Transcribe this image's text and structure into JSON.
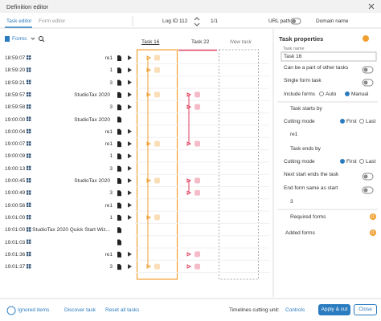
{
  "header": {
    "title": "Definition editor"
  },
  "tabs": [
    "Task editor",
    "Form editor"
  ],
  "toolbar": {
    "log_id": "Log ID 112",
    "page": "1/1",
    "url_path": "URL path",
    "domain_name": "Domain name"
  },
  "list": {
    "filter": "Forms",
    "rows": [
      {
        "time": "18:59:07",
        "form": "re1"
      },
      {
        "time": "18:59:20",
        "form": "1"
      },
      {
        "time": "18:59:21",
        "form": "3"
      },
      {
        "time": "18:59:57",
        "app": "StudioTax 2020",
        "form": "re1"
      },
      {
        "time": "18:59:58",
        "form": "3"
      },
      {
        "time": "19:00:00",
        "app": "StudioTax 2020"
      },
      {
        "time": "19:00:04",
        "form": "re1"
      },
      {
        "time": "19:00:07",
        "form": "re1"
      },
      {
        "time": "19:00:09",
        "form": "1"
      },
      {
        "time": "19:00:13",
        "form": "3"
      },
      {
        "time": "19:00:45",
        "app": "StudioTax 2020",
        "form": "re1"
      },
      {
        "time": "19:00:49",
        "form": "3"
      },
      {
        "time": "19:00:56",
        "form": "re1"
      },
      {
        "time": "19:01:00",
        "form": "1"
      },
      {
        "time": "19:01:00",
        "app": "StudioTax 2020 Quick Start Wiz..."
      },
      {
        "time": "19:01:03"
      },
      {
        "time": "19:01:36",
        "form": "re1"
      },
      {
        "time": "19:01:37",
        "form": "3"
      }
    ]
  },
  "tasks": [
    "Task 16",
    "Task 22",
    "New task"
  ],
  "properties": {
    "title": "Task properties",
    "name_label": "Task name",
    "name_value": "Task 16",
    "part_of_other": "Can be a part of other tasks",
    "single_form": "Single form task",
    "include_forms": "Include forms",
    "auto": "Auto",
    "manual": "Manual",
    "starts_by": "Task starts by",
    "cutting_mode": "Cutting mode",
    "first": "First",
    "last": "Last",
    "start_form": "re1",
    "ends_by": "Task ends by",
    "next_start": "Next start ends the task",
    "end_same": "End form same as start",
    "end_form": "3",
    "required_forms": "Required forms",
    "required_count": 0,
    "added_forms": "Added forms",
    "added_count": 0
  },
  "footer": {
    "ignored": "Ignored items",
    "discover": "Discover task",
    "reset": "Reset all tasks",
    "cutting_unit": "Timelines cutting unit:",
    "unit_value": "Controls",
    "apply": "Apply & cut",
    "close": "Close"
  }
}
